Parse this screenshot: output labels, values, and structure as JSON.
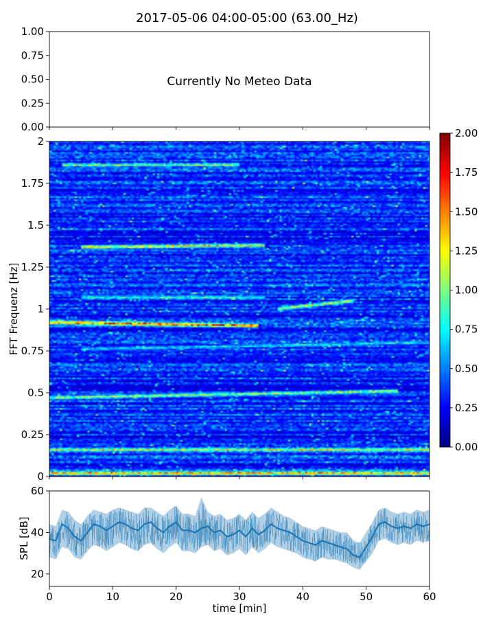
{
  "figure": {
    "title": "2017-05-06 04:00-05:00 (63.00_Hz)"
  },
  "chart_data": [
    {
      "type": "line",
      "panel": "meteo",
      "title": "",
      "annotation": "Currently No Meteo Data",
      "xlabel": "",
      "ylabel": "",
      "xlim": [
        0,
        60
      ],
      "ylim": [
        0,
        1
      ],
      "yticks": [
        "0.00",
        "0.25",
        "0.50",
        "0.75",
        "1.00"
      ],
      "xticks_labeled": false,
      "series": []
    },
    {
      "type": "heatmap",
      "panel": "spectrogram",
      "title": "",
      "xlabel": "",
      "ylabel": "FFT Frequenz [Hz]",
      "xlim": [
        0,
        60
      ],
      "ylim": [
        0,
        2
      ],
      "yticks": [
        "0",
        "0.25",
        "0.5",
        "0.75",
        "1",
        "1.25",
        "1.5",
        "1.75",
        "2"
      ],
      "colormap": "jet",
      "colorbar": {
        "range": [
          0,
          2
        ],
        "ticks": [
          "0.00",
          "0.25",
          "0.50",
          "0.75",
          "1.00",
          "1.25",
          "1.50",
          "1.75",
          "2.00"
        ]
      },
      "dominant_lines": [
        {
          "freq_start": 0.92,
          "freq_end": 0.9,
          "t_start": 0,
          "t_end": 33,
          "value": 2.0
        },
        {
          "freq_start": 1.0,
          "freq_end": 1.05,
          "t_start": 36,
          "t_end": 48,
          "value": 1.4
        },
        {
          "freq_start": 1.37,
          "freq_end": 1.38,
          "t_start": 5,
          "t_end": 34,
          "value": 1.5
        },
        {
          "freq_start": 0.47,
          "freq_end": 0.51,
          "t_start": 0,
          "t_end": 55,
          "value": 1.3
        },
        {
          "freq_start": 0.16,
          "freq_end": 0.16,
          "t_start": 0,
          "t_end": 60,
          "value": 1.4
        },
        {
          "freq_start": 0.02,
          "freq_end": 0.02,
          "t_start": 0,
          "t_end": 60,
          "value": 1.8
        },
        {
          "freq_start": 1.07,
          "freq_end": 1.07,
          "t_start": 5,
          "t_end": 34,
          "value": 1.0
        },
        {
          "freq_start": 1.86,
          "freq_end": 1.86,
          "t_start": 2,
          "t_end": 30,
          "value": 1.2
        },
        {
          "freq_start": 0.76,
          "freq_end": 0.8,
          "t_start": 5,
          "t_end": 60,
          "value": 0.9
        }
      ]
    },
    {
      "type": "line",
      "panel": "spl",
      "title": "",
      "xlabel": "time [min]",
      "ylabel": "SPL [dB]",
      "xlim": [
        0,
        60
      ],
      "ylim": [
        14,
        60
      ],
      "xticks": [
        "0",
        "10",
        "20",
        "30",
        "40",
        "50",
        "60"
      ],
      "yticks": [
        "20",
        "40",
        "60"
      ],
      "color": "#1f77b4",
      "x": [
        0,
        1,
        2,
        3,
        4,
        5,
        6,
        7,
        8,
        9,
        10,
        11,
        12,
        13,
        14,
        15,
        16,
        17,
        18,
        19,
        20,
        21,
        22,
        23,
        24,
        25,
        26,
        27,
        28,
        29,
        30,
        31,
        32,
        33,
        34,
        35,
        36,
        37,
        38,
        39,
        40,
        41,
        42,
        43,
        44,
        45,
        46,
        47,
        48,
        49,
        50,
        51,
        52,
        53,
        54,
        55,
        56,
        57,
        58,
        59,
        60
      ],
      "y": [
        37,
        36,
        44,
        42,
        38,
        36,
        40,
        44,
        43,
        41,
        43,
        45,
        44,
        42,
        41,
        44,
        45,
        42,
        40,
        43,
        45,
        41,
        41,
        40,
        42,
        43,
        40,
        41,
        38,
        39,
        41,
        38,
        42,
        39,
        41,
        44,
        42,
        41,
        40,
        38,
        36,
        35,
        34,
        36,
        35,
        34,
        33,
        32,
        29,
        28,
        33,
        38,
        44,
        45,
        43,
        42,
        43,
        42,
        44,
        43,
        44
      ],
      "y_low": [
        28,
        27,
        33,
        32,
        28,
        27,
        31,
        34,
        33,
        31,
        33,
        35,
        34,
        32,
        31,
        34,
        35,
        32,
        30,
        33,
        35,
        31,
        31,
        30,
        33,
        34,
        31,
        32,
        29,
        30,
        32,
        29,
        33,
        30,
        32,
        35,
        33,
        32,
        31,
        30,
        28,
        27,
        26,
        28,
        27,
        27,
        26,
        25,
        23,
        22,
        26,
        30,
        36,
        37,
        35,
        34,
        35,
        34,
        36,
        35,
        36
      ],
      "y_high": [
        44,
        43,
        51,
        50,
        46,
        44,
        48,
        51,
        50,
        49,
        51,
        52,
        51,
        50,
        49,
        52,
        52,
        50,
        48,
        51,
        53,
        49,
        49,
        48,
        57,
        50,
        48,
        49,
        46,
        47,
        49,
        46,
        50,
        47,
        49,
        52,
        50,
        48,
        47,
        45,
        43,
        42,
        41,
        43,
        42,
        41,
        40,
        40,
        36,
        35,
        40,
        45,
        51,
        52,
        50,
        49,
        50,
        49,
        51,
        50,
        51
      ]
    }
  ]
}
